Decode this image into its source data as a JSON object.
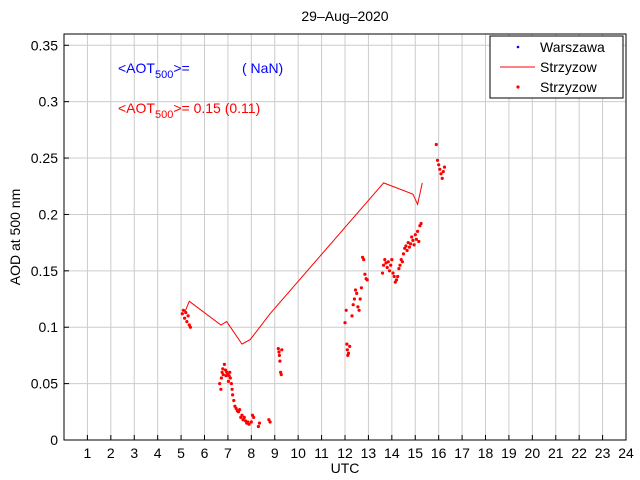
{
  "chart_data": {
    "type": "scatter",
    "title": "29–Aug–2020",
    "xlabel": "UTC",
    "ylabel": "AOD at 500 nm",
    "xlim": [
      0,
      24
    ],
    "ylim": [
      0,
      0.36
    ],
    "xticks": [
      1,
      2,
      3,
      4,
      5,
      6,
      7,
      8,
      9,
      10,
      11,
      12,
      13,
      14,
      15,
      16,
      17,
      18,
      19,
      20,
      21,
      22,
      23,
      24
    ],
    "yticks": [
      0,
      0.05,
      0.1,
      0.15,
      0.2,
      0.25,
      0.3,
      0.35
    ],
    "ytick_labels": [
      "0",
      "0.05",
      "0.1",
      "0.15",
      "0.2",
      "0.25",
      "0.3",
      "0.35"
    ],
    "grid": true,
    "legend_position": "top-right",
    "colors": {
      "warszawa": "#0000ff",
      "strzyzow": "#ff0000"
    },
    "annotations": {
      "warszawa_prefix": "<AOT",
      "warszawa_sub": "500",
      "warszawa_suffix": ">=",
      "warszawa_value": "( NaN)",
      "strzyzow_prefix": "<AOT",
      "strzyzow_sub": "500",
      "strzyzow_suffix": ">= 0.15 (0.11)"
    },
    "series": [
      {
        "name": "Warszawa",
        "kind": "points",
        "color": "#0000ff",
        "points": []
      },
      {
        "name": "Strzyzow",
        "kind": "line",
        "color": "#ff0000",
        "points": [
          [
            5.15,
            0.113
          ],
          [
            5.35,
            0.123
          ],
          [
            6.7,
            0.102
          ],
          [
            6.95,
            0.105
          ],
          [
            7.6,
            0.085
          ],
          [
            7.95,
            0.089
          ],
          [
            8.8,
            0.112
          ],
          [
            13.65,
            0.228
          ],
          [
            14.9,
            0.218
          ],
          [
            15.1,
            0.209
          ],
          [
            15.3,
            0.228
          ]
        ]
      },
      {
        "name": "Strzyzow",
        "kind": "points",
        "color": "#ff0000",
        "points": [
          [
            5.05,
            0.112
          ],
          [
            5.1,
            0.115
          ],
          [
            5.15,
            0.108
          ],
          [
            5.2,
            0.113
          ],
          [
            5.25,
            0.105
          ],
          [
            5.3,
            0.11
          ],
          [
            5.35,
            0.102
          ],
          [
            5.4,
            0.1
          ],
          [
            6.65,
            0.05
          ],
          [
            6.7,
            0.045
          ],
          [
            6.72,
            0.055
          ],
          [
            6.75,
            0.06
          ],
          [
            6.78,
            0.063
          ],
          [
            6.8,
            0.058
          ],
          [
            6.85,
            0.067
          ],
          [
            6.9,
            0.062
          ],
          [
            6.92,
            0.057
          ],
          [
            6.95,
            0.06
          ],
          [
            7.0,
            0.058
          ],
          [
            7.02,
            0.052
          ],
          [
            7.05,
            0.057
          ],
          [
            7.08,
            0.06
          ],
          [
            7.1,
            0.055
          ],
          [
            7.15,
            0.05
          ],
          [
            7.18,
            0.045
          ],
          [
            7.2,
            0.04
          ],
          [
            7.25,
            0.035
          ],
          [
            7.3,
            0.03
          ],
          [
            7.35,
            0.028
          ],
          [
            7.4,
            0.026
          ],
          [
            7.45,
            0.025
          ],
          [
            7.5,
            0.027
          ],
          [
            7.55,
            0.02
          ],
          [
            7.6,
            0.022
          ],
          [
            7.65,
            0.018
          ],
          [
            7.7,
            0.02
          ],
          [
            7.75,
            0.017
          ],
          [
            7.8,
            0.015
          ],
          [
            7.85,
            0.016
          ],
          [
            7.9,
            0.014
          ],
          [
            8.0,
            0.016
          ],
          [
            8.05,
            0.022
          ],
          [
            8.1,
            0.02
          ],
          [
            8.3,
            0.012
          ],
          [
            8.35,
            0.015
          ],
          [
            8.75,
            0.018
          ],
          [
            8.8,
            0.016
          ],
          [
            9.15,
            0.081
          ],
          [
            9.18,
            0.078
          ],
          [
            9.2,
            0.075
          ],
          [
            9.22,
            0.07
          ],
          [
            9.25,
            0.06
          ],
          [
            9.28,
            0.058
          ],
          [
            9.3,
            0.08
          ],
          [
            12.0,
            0.104
          ],
          [
            12.05,
            0.115
          ],
          [
            12.08,
            0.085
          ],
          [
            12.1,
            0.08
          ],
          [
            12.12,
            0.075
          ],
          [
            12.15,
            0.077
          ],
          [
            12.2,
            0.083
          ],
          [
            12.3,
            0.11
          ],
          [
            12.35,
            0.12
          ],
          [
            12.4,
            0.125
          ],
          [
            12.45,
            0.133
          ],
          [
            12.5,
            0.13
          ],
          [
            12.55,
            0.118
          ],
          [
            12.6,
            0.115
          ],
          [
            12.65,
            0.125
          ],
          [
            12.7,
            0.135
          ],
          [
            12.75,
            0.162
          ],
          [
            12.8,
            0.16
          ],
          [
            12.85,
            0.147
          ],
          [
            12.9,
            0.143
          ],
          [
            12.95,
            0.142
          ],
          [
            13.6,
            0.148
          ],
          [
            13.65,
            0.155
          ],
          [
            13.7,
            0.16
          ],
          [
            13.75,
            0.157
          ],
          [
            13.8,
            0.153
          ],
          [
            13.85,
            0.158
          ],
          [
            13.9,
            0.15
          ],
          [
            13.95,
            0.155
          ],
          [
            14.0,
            0.16
          ],
          [
            14.05,
            0.148
          ],
          [
            14.1,
            0.145
          ],
          [
            14.15,
            0.14
          ],
          [
            14.2,
            0.142
          ],
          [
            14.25,
            0.145
          ],
          [
            14.3,
            0.152
          ],
          [
            14.35,
            0.155
          ],
          [
            14.4,
            0.16
          ],
          [
            14.45,
            0.158
          ],
          [
            14.5,
            0.165
          ],
          [
            14.55,
            0.17
          ],
          [
            14.6,
            0.172
          ],
          [
            14.65,
            0.168
          ],
          [
            14.7,
            0.175
          ],
          [
            14.75,
            0.171
          ],
          [
            14.8,
            0.174
          ],
          [
            14.85,
            0.18
          ],
          [
            14.9,
            0.177
          ],
          [
            14.95,
            0.173
          ],
          [
            15.0,
            0.182
          ],
          [
            15.05,
            0.178
          ],
          [
            15.1,
            0.185
          ],
          [
            15.15,
            0.176
          ],
          [
            15.2,
            0.19
          ],
          [
            15.25,
            0.192
          ],
          [
            15.9,
            0.262
          ],
          [
            15.95,
            0.248
          ],
          [
            16.0,
            0.244
          ],
          [
            16.05,
            0.24
          ],
          [
            16.1,
            0.236
          ],
          [
            16.15,
            0.232
          ],
          [
            16.2,
            0.238
          ],
          [
            16.25,
            0.242
          ]
        ]
      }
    ]
  }
}
